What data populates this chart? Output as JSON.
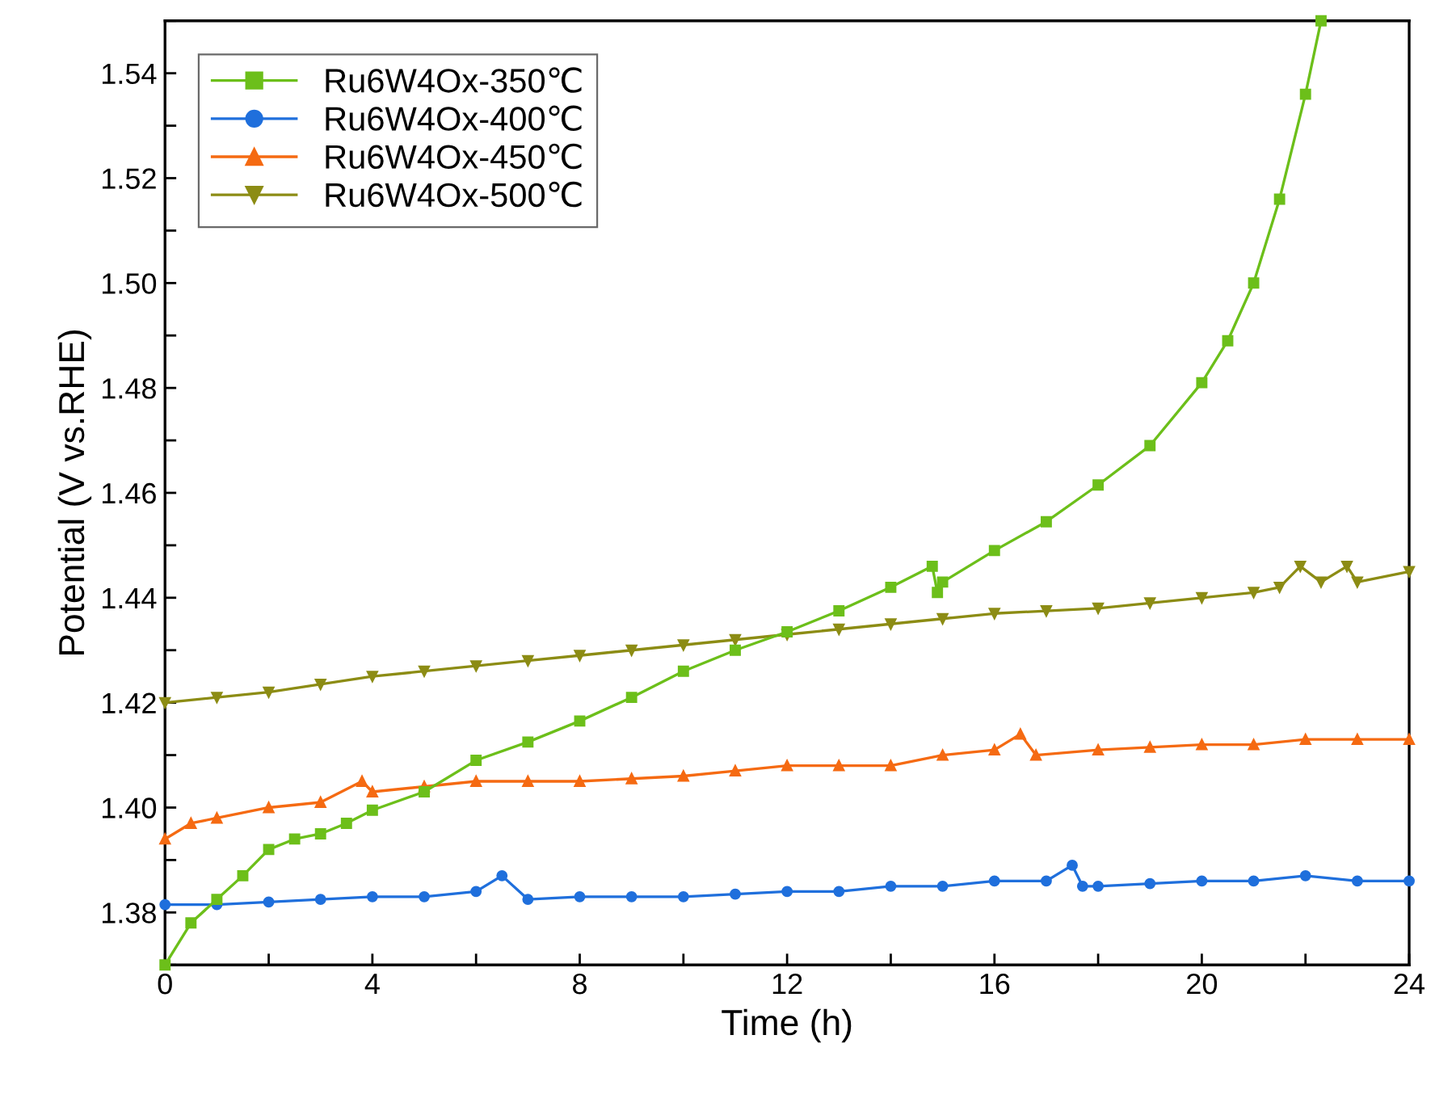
{
  "chart_data": {
    "type": "line",
    "xlabel": "Time (h)",
    "ylabel": "Potential (V vs.RHE)",
    "xlim": [
      0,
      24
    ],
    "ylim": [
      1.37,
      1.55
    ],
    "xticks": [
      0,
      {
        "value": 2,
        "label": null
      },
      4,
      {
        "value": 6,
        "label": null
      },
      8,
      {
        "value": 10,
        "label": null
      },
      12,
      {
        "value": 14,
        "label": null
      },
      16,
      {
        "value": 18,
        "label": null
      },
      20,
      {
        "value": 22,
        "label": null
      },
      24
    ],
    "yticks": [
      {
        "value": 1.37,
        "label": null
      },
      {
        "value": 1.38,
        "label": "1.38"
      },
      {
        "value": 1.39,
        "label": null
      },
      {
        "value": 1.4,
        "label": "1.40"
      },
      {
        "value": 1.41,
        "label": null
      },
      {
        "value": 1.42,
        "label": "1.42"
      },
      {
        "value": 1.43,
        "label": null
      },
      {
        "value": 1.44,
        "label": "1.44"
      },
      {
        "value": 1.45,
        "label": null
      },
      {
        "value": 1.46,
        "label": "1.46"
      },
      {
        "value": 1.47,
        "label": null
      },
      {
        "value": 1.48,
        "label": "1.48"
      },
      {
        "value": 1.49,
        "label": null
      },
      {
        "value": 1.5,
        "label": "1.50"
      },
      {
        "value": 1.51,
        "label": null
      },
      {
        "value": 1.52,
        "label": "1.52"
      },
      {
        "value": 1.53,
        "label": null
      },
      {
        "value": 1.54,
        "label": "1.54"
      },
      {
        "value": 1.55,
        "label": null
      }
    ],
    "grid": false,
    "legend": "top left",
    "series": [
      {
        "name": "Ru6W4Ox-350℃",
        "color": "#6cbf1a",
        "marker": "square",
        "x": [
          0,
          0.5,
          1,
          1.5,
          2,
          2.5,
          3,
          3.5,
          4,
          5,
          6,
          7,
          8,
          9,
          10,
          11,
          12,
          13,
          14,
          14.8,
          14.9,
          15,
          16,
          17,
          18,
          19,
          20,
          20.5,
          21,
          21.5,
          22,
          22.3
        ],
        "values": [
          1.37,
          1.378,
          1.3825,
          1.387,
          1.392,
          1.394,
          1.395,
          1.397,
          1.3995,
          1.403,
          1.409,
          1.4125,
          1.4165,
          1.421,
          1.426,
          1.43,
          1.4335,
          1.4375,
          1.442,
          1.446,
          1.441,
          1.443,
          1.449,
          1.4545,
          1.4615,
          1.469,
          1.481,
          1.489,
          1.5,
          1.516,
          1.536,
          1.55
        ]
      },
      {
        "name": "Ru6W4Ox-400℃",
        "color": "#1f6fdc",
        "marker": "circle",
        "x": [
          0,
          1,
          2,
          3,
          4,
          5,
          6,
          6.5,
          7,
          8,
          9,
          10,
          11,
          12,
          13,
          14,
          15,
          16,
          17,
          17.5,
          17.7,
          18,
          19,
          20,
          21,
          22,
          23,
          24
        ],
        "values": [
          1.3815,
          1.3815,
          1.382,
          1.3825,
          1.383,
          1.383,
          1.384,
          1.387,
          1.3825,
          1.383,
          1.383,
          1.383,
          1.3835,
          1.384,
          1.384,
          1.385,
          1.385,
          1.386,
          1.386,
          1.389,
          1.385,
          1.385,
          1.3855,
          1.386,
          1.386,
          1.387,
          1.386,
          1.386
        ]
      },
      {
        "name": "Ru6W4Ox-450℃",
        "color": "#f56a12",
        "marker": "triangle",
        "x": [
          0,
          0.5,
          1,
          2,
          3,
          3.8,
          4,
          5,
          6,
          7,
          8,
          9,
          10,
          11,
          12,
          13,
          14,
          15,
          16,
          16.5,
          16.8,
          18,
          19,
          20,
          21,
          22,
          23,
          24
        ],
        "values": [
          1.394,
          1.397,
          1.398,
          1.4,
          1.401,
          1.405,
          1.403,
          1.404,
          1.405,
          1.405,
          1.405,
          1.4055,
          1.406,
          1.407,
          1.408,
          1.408,
          1.408,
          1.41,
          1.411,
          1.414,
          1.41,
          1.411,
          1.4115,
          1.412,
          1.412,
          1.413,
          1.413,
          1.413
        ]
      },
      {
        "name": "Ru6W4Ox-500℃",
        "color": "#8c8c14",
        "marker": "triangle_down",
        "x": [
          0,
          1,
          2,
          3,
          4,
          5,
          6,
          7,
          8,
          9,
          10,
          11,
          12,
          13,
          14,
          15,
          16,
          17,
          18,
          19,
          20,
          21,
          21.5,
          21.9,
          22.3,
          22.8,
          23,
          24
        ],
        "values": [
          1.42,
          1.421,
          1.422,
          1.4235,
          1.425,
          1.426,
          1.427,
          1.428,
          1.429,
          1.43,
          1.431,
          1.432,
          1.433,
          1.434,
          1.435,
          1.436,
          1.437,
          1.4375,
          1.438,
          1.439,
          1.44,
          1.441,
          1.442,
          1.446,
          1.443,
          1.446,
          1.443,
          1.445
        ]
      }
    ]
  }
}
